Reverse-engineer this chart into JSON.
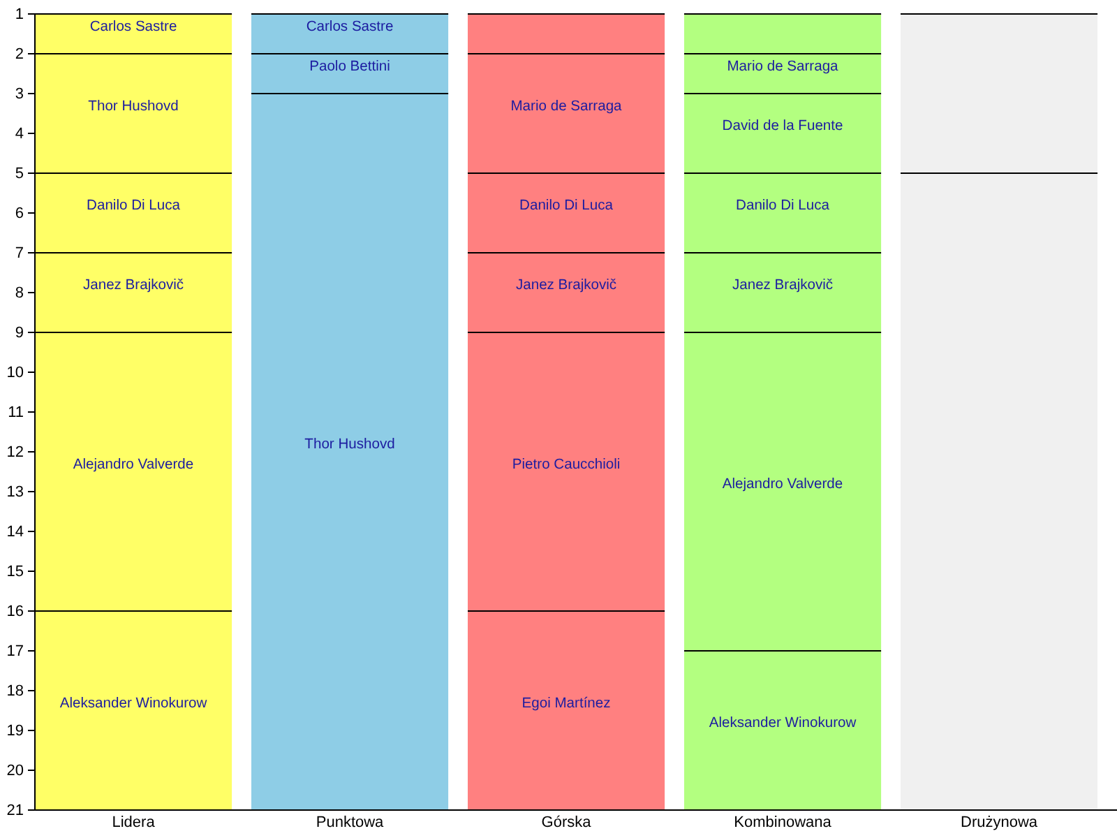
{
  "chart_data": {
    "type": "bar",
    "categories": [
      "Lidera",
      "Punktowa",
      "Górska",
      "Kombinowana",
      "Drużynowa"
    ],
    "ylim": [
      21,
      1
    ],
    "yticks": [
      1,
      2,
      3,
      4,
      5,
      6,
      7,
      8,
      9,
      10,
      11,
      12,
      13,
      14,
      15,
      16,
      17,
      18,
      19,
      20,
      21
    ],
    "series": [
      {
        "base": [
          1,
          1,
          1,
          1,
          1
        ],
        "values": [
          1,
          1,
          1,
          1,
          4
        ],
        "colors": [
          "#ffff66",
          "#8ecde6",
          "#ff8080",
          "#b3ff80",
          "#f0f0f0"
        ],
        "value_labels": [
          "Carlos Sastre",
          "Carlos Sastre",
          null,
          null,
          null
        ]
      },
      {
        "base": [
          2,
          2,
          2,
          2,
          5
        ],
        "values": [
          3,
          1,
          3,
          1,
          16
        ],
        "colors": [
          "#ffff66",
          "#8ecde6",
          "#ff8080",
          "#b3ff80",
          "#f0f0f0"
        ],
        "value_labels": [
          "Thor Hushovd",
          "Paolo Bettini",
          "Mario de Sarraga",
          "Mario de Sarraga",
          null
        ]
      },
      {
        "base": [
          5,
          3,
          5,
          3,
          null
        ],
        "values": [
          2,
          18,
          2,
          2,
          null
        ],
        "colors": [
          "#ffff66",
          "#8ecde6",
          "#ff8080",
          "#b3ff80",
          null
        ],
        "value_labels": [
          "Danilo Di Luca",
          "Thor Hushovd",
          "Danilo Di Luca",
          "David de la Fuente",
          null
        ]
      },
      {
        "base": [
          7,
          null,
          7,
          5,
          null
        ],
        "values": [
          2,
          null,
          2,
          2,
          null
        ],
        "colors": [
          "#ffff66",
          null,
          "#ff8080",
          "#b3ff80",
          null
        ],
        "value_labels": [
          "Janez Brajkovič",
          null,
          "Janez Brajkovič",
          "Danilo Di Luca",
          null
        ]
      },
      {
        "base": [
          9,
          null,
          9,
          7,
          null
        ],
        "values": [
          7,
          null,
          7,
          2,
          null
        ],
        "colors": [
          "#ffff66",
          null,
          "#ff8080",
          "#b3ff80",
          null
        ],
        "value_labels": [
          "Alejandro Valverde",
          null,
          "Pietro Caucchioli",
          "Janez Brajkovič",
          null
        ]
      },
      {
        "base": [
          16,
          null,
          16,
          9,
          null
        ],
        "values": [
          5,
          null,
          5,
          8,
          null
        ],
        "colors": [
          "#ffff66",
          null,
          "#ff8080",
          "#b3ff80",
          null
        ],
        "value_labels": [
          "Aleksander Winokurow",
          null,
          "Egoi Martínez",
          "Alejandro Valverde",
          null
        ]
      },
      {
        "base": [
          null,
          null,
          null,
          17,
          null
        ],
        "values": [
          null,
          null,
          null,
          4,
          null
        ],
        "colors": [
          null,
          null,
          null,
          "#b3ff80",
          null
        ],
        "value_labels": [
          null,
          null,
          null,
          "Aleksander Winokurow",
          null
        ]
      }
    ]
  }
}
